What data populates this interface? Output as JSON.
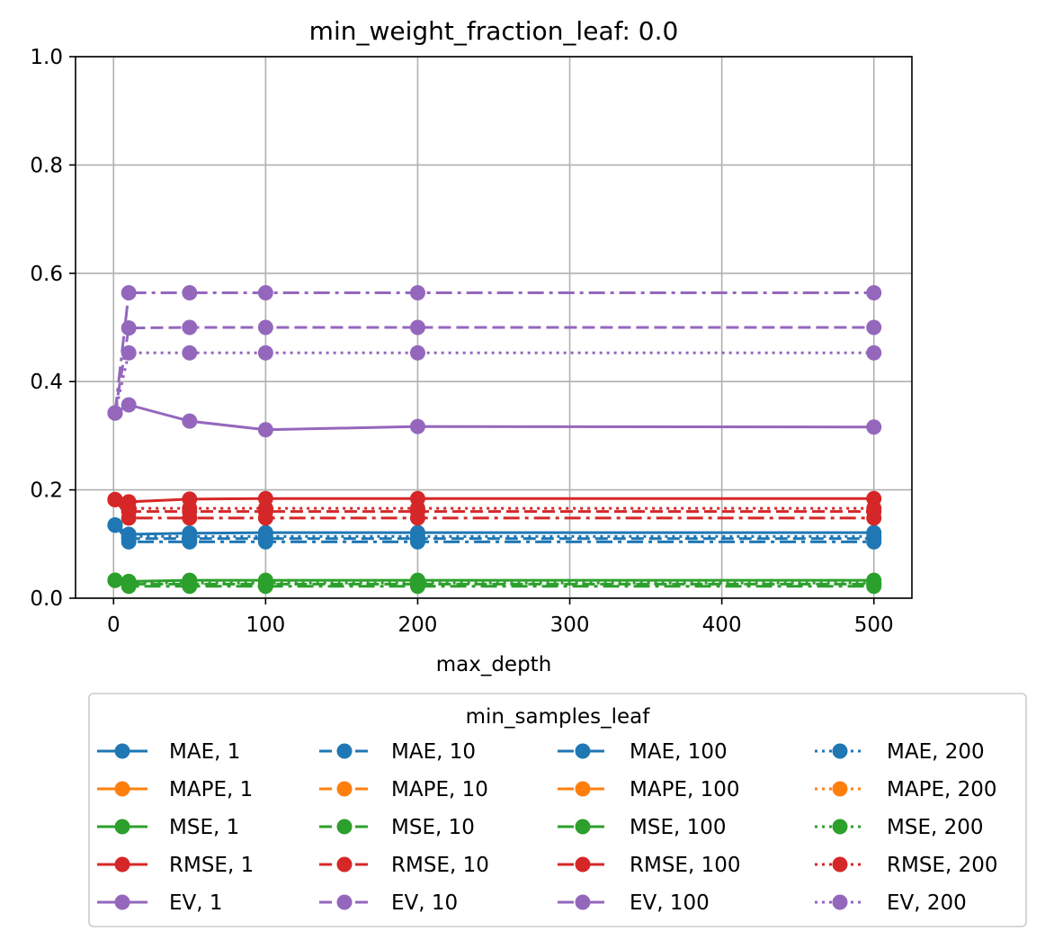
{
  "chart_data": {
    "type": "line",
    "title": "min_weight_fraction_leaf: 0.0",
    "xlabel": "max_depth",
    "ylabel": "",
    "xlim": [
      -25,
      525
    ],
    "ylim": [
      0.0,
      1.0
    ],
    "x_ticks": [
      0,
      100,
      200,
      300,
      400,
      500
    ],
    "x_tick_labels": [
      "0",
      "100",
      "200",
      "300",
      "400",
      "500"
    ],
    "y_ticks": [
      0.0,
      0.2,
      0.4,
      0.6,
      0.8,
      1.0
    ],
    "y_tick_labels": [
      "0.0",
      "0.2",
      "0.4",
      "0.6",
      "0.8",
      "1.0"
    ],
    "grid": true,
    "legend": {
      "title": "min_samples_leaf",
      "placement": "below plot",
      "columns": 4
    },
    "colors": {
      "MAE": "#1f77b4",
      "MAPE": "#ff7f0e",
      "MSE": "#2ca02c",
      "RMSE": "#d62728",
      "EV": "#9467bd"
    },
    "x": [
      1,
      10,
      50,
      100,
      200,
      500
    ],
    "series": [
      {
        "name": "MAE, 1",
        "metric": "MAE",
        "style": "solid",
        "values": [
          0.135,
          0.118,
          0.12,
          0.121,
          0.121,
          0.121
        ]
      },
      {
        "name": "MAPE, 1",
        "metric": "MAPE",
        "style": "solid",
        "values": [
          null,
          null,
          null,
          null,
          null,
          null
        ]
      },
      {
        "name": "MSE, 1",
        "metric": "MSE",
        "style": "solid",
        "values": [
          0.033,
          0.031,
          0.033,
          0.033,
          0.033,
          0.033
        ]
      },
      {
        "name": "RMSE, 1",
        "metric": "RMSE",
        "style": "solid",
        "values": [
          0.182,
          0.178,
          0.183,
          0.184,
          0.184,
          0.184
        ]
      },
      {
        "name": "EV, 1",
        "metric": "EV",
        "style": "solid",
        "values": [
          0.342,
          0.357,
          0.327,
          0.311,
          0.317,
          0.316
        ]
      },
      {
        "name": "MAE, 10",
        "metric": "MAE",
        "style": "dashed",
        "values": [
          0.135,
          0.11,
          0.11,
          0.11,
          0.11,
          0.11
        ]
      },
      {
        "name": "MAPE, 10",
        "metric": "MAPE",
        "style": "dashed",
        "values": [
          null,
          null,
          null,
          null,
          null,
          null
        ]
      },
      {
        "name": "MSE, 10",
        "metric": "MSE",
        "style": "dashed",
        "values": [
          0.033,
          0.026,
          0.026,
          0.026,
          0.026,
          0.026
        ]
      },
      {
        "name": "RMSE, 10",
        "metric": "RMSE",
        "style": "dashed",
        "values": [
          0.182,
          0.16,
          0.16,
          0.16,
          0.16,
          0.16
        ]
      },
      {
        "name": "EV, 10",
        "metric": "EV",
        "style": "dashed",
        "values": [
          0.342,
          0.499,
          0.5,
          0.5,
          0.5,
          0.5
        ]
      },
      {
        "name": "MAE, 100",
        "metric": "MAE",
        "style": "dashdot",
        "values": [
          0.135,
          0.104,
          0.104,
          0.104,
          0.104,
          0.104
        ]
      },
      {
        "name": "MAPE, 100",
        "metric": "MAPE",
        "style": "dashdot",
        "values": [
          null,
          null,
          null,
          null,
          null,
          null
        ]
      },
      {
        "name": "MSE, 100",
        "metric": "MSE",
        "style": "dashdot",
        "values": [
          0.033,
          0.022,
          0.022,
          0.022,
          0.022,
          0.022
        ]
      },
      {
        "name": "RMSE, 100",
        "metric": "RMSE",
        "style": "dashdot",
        "values": [
          0.182,
          0.148,
          0.148,
          0.148,
          0.148,
          0.148
        ]
      },
      {
        "name": "EV, 100",
        "metric": "EV",
        "style": "dashdot",
        "values": [
          0.342,
          0.564,
          0.564,
          0.564,
          0.564,
          0.564
        ]
      },
      {
        "name": "MAE, 200",
        "metric": "MAE",
        "style": "dotted",
        "values": [
          0.135,
          0.114,
          0.114,
          0.114,
          0.114,
          0.114
        ]
      },
      {
        "name": "MAPE, 200",
        "metric": "MAPE",
        "style": "dotted",
        "values": [
          null,
          null,
          null,
          null,
          null,
          null
        ]
      },
      {
        "name": "MSE, 200",
        "metric": "MSE",
        "style": "dotted",
        "values": [
          0.033,
          0.028,
          0.028,
          0.028,
          0.028,
          0.028
        ]
      },
      {
        "name": "RMSE, 200",
        "metric": "RMSE",
        "style": "dotted",
        "values": [
          0.182,
          0.166,
          0.166,
          0.166,
          0.166,
          0.166
        ]
      },
      {
        "name": "EV, 200",
        "metric": "EV",
        "style": "dotted",
        "values": [
          0.342,
          0.453,
          0.453,
          0.453,
          0.453,
          0.453
        ]
      }
    ]
  }
}
